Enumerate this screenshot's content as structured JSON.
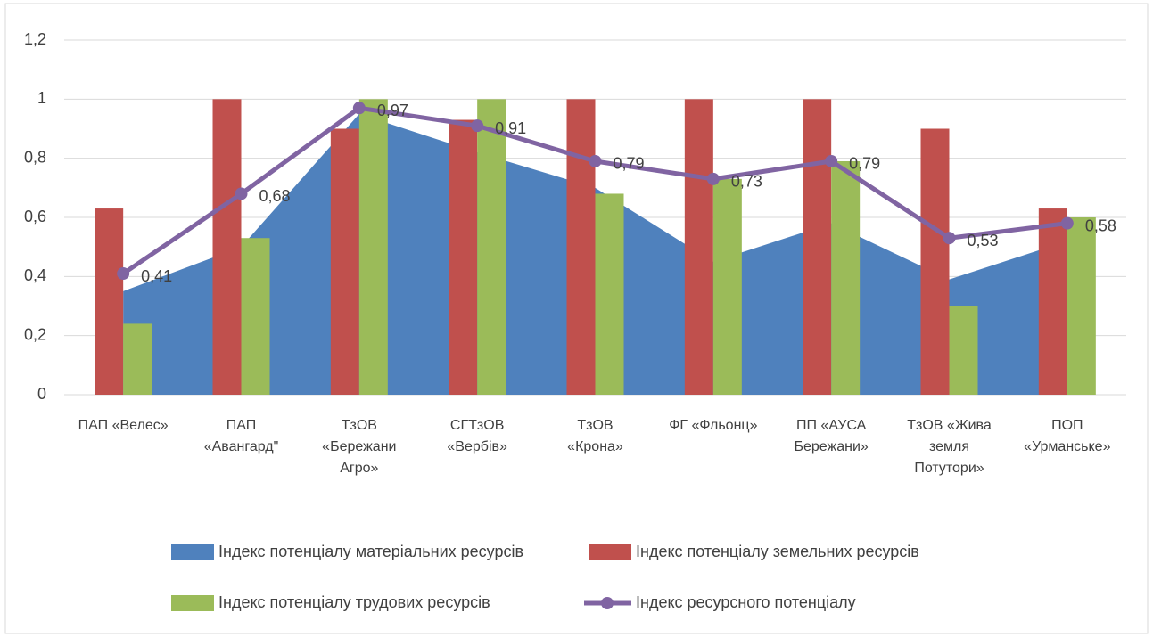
{
  "chart_data": {
    "type": "combo",
    "categories": [
      "ПАП «Велес»",
      "ПАП «Авангард\"",
      "ТзОВ «Бережани Агро»",
      "СГТзОВ «Вербів»",
      "ТзОВ «Крона»",
      "ФГ «Фльонц»",
      "ПП «АУСА Бережани»",
      "ТзОВ «Жива земля Потутори»",
      "ПОП «Урманське»"
    ],
    "series": [
      {
        "name": "Індекс потенціалу матеріальних ресурсів",
        "type": "area",
        "color": "#4f81bd",
        "values": [
          0.35,
          0.5,
          0.95,
          0.82,
          0.7,
          0.45,
          0.58,
          0.39,
          0.52
        ]
      },
      {
        "name": "Індекс потенціалу земельних ресурсів",
        "type": "bar",
        "color": "#c0504d",
        "values": [
          0.63,
          1,
          0.9,
          0.93,
          1,
          1,
          1,
          0.9,
          0.63
        ]
      },
      {
        "name": "Індекс потенціалу трудових ресурсів",
        "type": "bar",
        "color": "#9bbb59",
        "values": [
          0.24,
          0.53,
          1,
          1,
          0.68,
          0.73,
          0.79,
          0.3,
          0.6
        ]
      },
      {
        "name": "Індекс ресурсного потенціалу",
        "type": "line",
        "color": "#8064a2",
        "values": [
          0.41,
          0.68,
          0.97,
          0.91,
          0.79,
          0.73,
          0.79,
          0.53,
          0.58
        ],
        "value_labels": [
          "0,41",
          "0,68",
          "0,97",
          "0,91",
          "0,79",
          "0,73",
          "0,79",
          "0,53",
          "0,58"
        ]
      }
    ],
    "ylim": [
      0,
      1.2
    ],
    "yticks": [
      0,
      {
        "value": 0.2,
        "label": "0,2"
      },
      {
        "value": 0.4,
        "label": "0,4"
      },
      {
        "value": 0.6,
        "label": "0,6"
      },
      {
        "value": 0.8,
        "label": "0,8"
      },
      1,
      {
        "value": 1.2,
        "label": "1,2"
      }
    ],
    "grid": true,
    "legend": "bottom"
  }
}
